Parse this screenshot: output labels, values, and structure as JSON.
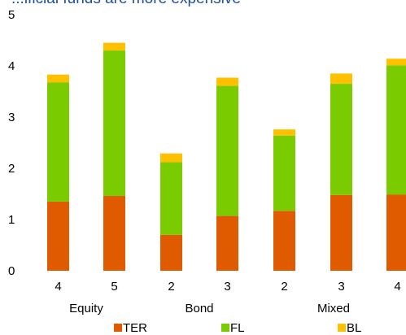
{
  "chart_data": {
    "type": "bar",
    "stacked": true,
    "title": "...ificial funds are more expensive",
    "categories": [
      "4",
      "5",
      "2",
      "3",
      "2",
      "3",
      "4"
    ],
    "groups": [
      {
        "label": "Equity"
      },
      {
        "label": "Bond"
      },
      {
        "label": "Mixed"
      }
    ],
    "series": [
      {
        "name": "TER",
        "color": "#e05a00",
        "values": [
          1.35,
          1.46,
          0.7,
          1.07,
          1.17,
          1.48,
          1.49
        ]
      },
      {
        "name": "FL",
        "color": "#7acc00",
        "values": [
          2.33,
          2.84,
          1.42,
          2.54,
          1.47,
          2.17,
          2.52
        ]
      },
      {
        "name": "BL",
        "color": "#ffc000",
        "values": [
          0.15,
          0.15,
          0.17,
          0.16,
          0.12,
          0.2,
          0.13
        ]
      }
    ],
    "ylim": [
      0,
      5
    ],
    "yticks": [
      "0",
      "1",
      "2",
      "3",
      "4",
      "5"
    ],
    "xlabel": "",
    "ylabel": "",
    "grid": false,
    "legend": "bottom"
  }
}
